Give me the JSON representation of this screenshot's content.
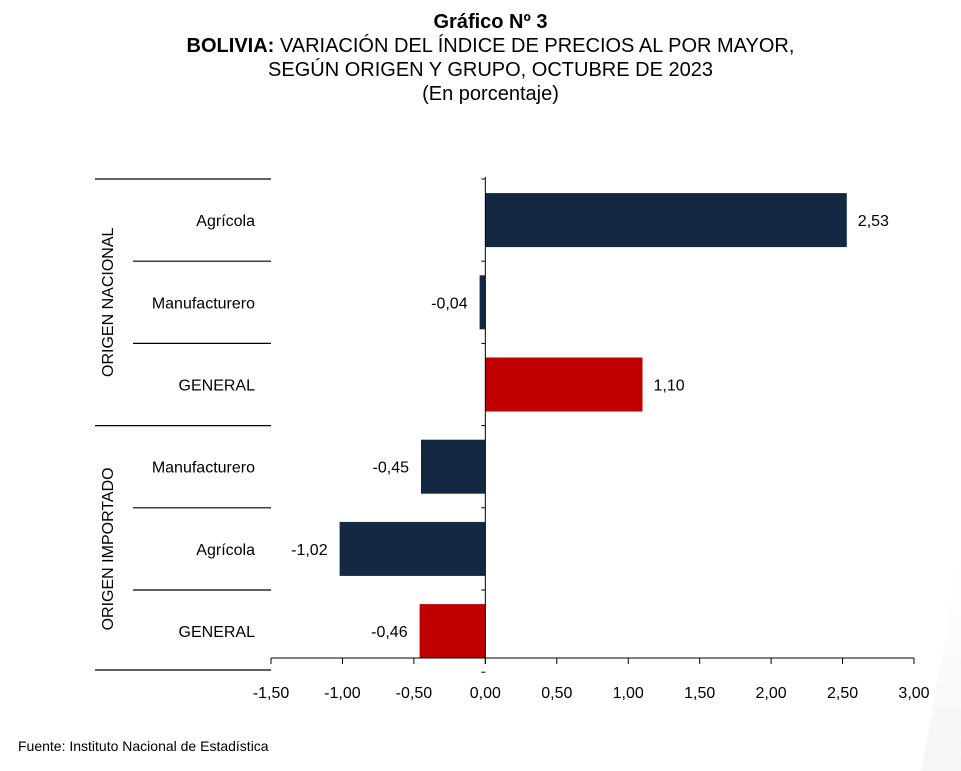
{
  "title": {
    "line1": "Gráfico Nº 3",
    "line2_bold": "BOLIVIA:",
    "line2_rest": " VARIACIÓN DEL ÍNDICE DE PRECIOS AL POR MAYOR,",
    "line3": "SEGÚN ORIGEN Y GRUPO, OCTUBRE DE 2023",
    "line4": "(En porcentaje)"
  },
  "source": "Fuente: Instituto Nacional de Estadística",
  "colors": {
    "navy": "#142842",
    "red": "#c00000",
    "axis": "#000000"
  },
  "chart_data": {
    "type": "bar",
    "orientation": "horizontal",
    "groups": [
      {
        "label": "ORIGEN NACIONAL",
        "categories": [
          "Agrícola",
          "Manufacturero",
          "GENERAL"
        ]
      },
      {
        "label": "ORIGEN IMPORTADO",
        "categories": [
          "Manufacturero",
          "Agrícola",
          "GENERAL"
        ]
      }
    ],
    "bars": [
      {
        "group": "ORIGEN NACIONAL",
        "category": "Agrícola",
        "value": 2.53,
        "label": "2,53",
        "color": "navy"
      },
      {
        "group": "ORIGEN NACIONAL",
        "category": "Manufacturero",
        "value": -0.04,
        "label": "-0,04",
        "color": "navy"
      },
      {
        "group": "ORIGEN NACIONAL",
        "category": "GENERAL",
        "value": 1.1,
        "label": "1,10",
        "color": "red"
      },
      {
        "group": "ORIGEN IMPORTADO",
        "category": "Manufacturero",
        "value": -0.45,
        "label": "-0,45",
        "color": "navy"
      },
      {
        "group": "ORIGEN IMPORTADO",
        "category": "Agrícola",
        "value": -1.02,
        "label": "-1,02",
        "color": "navy"
      },
      {
        "group": "ORIGEN IMPORTADO",
        "category": "GENERAL",
        "value": -0.46,
        "label": "-0,46",
        "color": "red"
      }
    ],
    "xlim": [
      -1.5,
      3.0
    ],
    "xticks": [
      -1.5,
      -1.0,
      -0.5,
      0.0,
      0.5,
      1.0,
      1.5,
      2.0,
      2.5,
      3.0
    ],
    "xtick_labels": [
      "-1,50",
      "-1,00",
      "-0,50",
      "0,00",
      "0,50",
      "1,00",
      "1,50",
      "2,00",
      "2,50",
      "3,00"
    ],
    "grid": false,
    "legend": "none"
  }
}
